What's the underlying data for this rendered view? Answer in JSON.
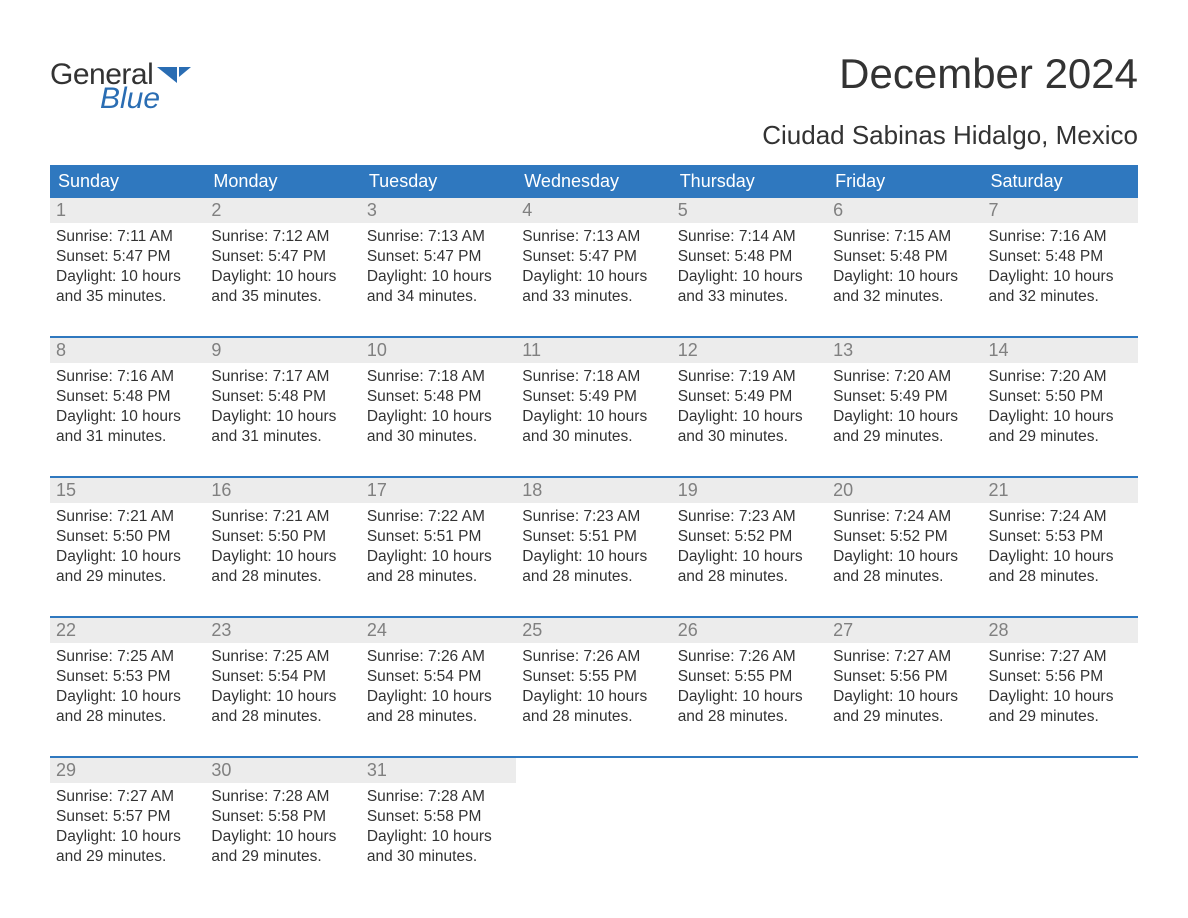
{
  "logo": {
    "text1": "General",
    "text2": "Blue",
    "shape_color": "#2a6db3"
  },
  "title": "December 2024",
  "location": "Ciudad Sabinas Hidalgo, Mexico",
  "colors": {
    "header_bg": "#2f78bf",
    "header_text": "#ffffff",
    "daynum_bg": "#ececec",
    "daynum_text": "#808080",
    "body_text": "#333333",
    "week_border": "#2f78bf",
    "page_bg": "#ffffff"
  },
  "dow": [
    "Sunday",
    "Monday",
    "Tuesday",
    "Wednesday",
    "Thursday",
    "Friday",
    "Saturday"
  ],
  "labels": {
    "sunrise": "Sunrise:",
    "sunset": "Sunset:",
    "daylight": "Daylight:"
  },
  "weeks": [
    [
      {
        "n": "1",
        "sr": "7:11 AM",
        "ss": "5:47 PM",
        "dl": "10 hours and 35 minutes."
      },
      {
        "n": "2",
        "sr": "7:12 AM",
        "ss": "5:47 PM",
        "dl": "10 hours and 35 minutes."
      },
      {
        "n": "3",
        "sr": "7:13 AM",
        "ss": "5:47 PM",
        "dl": "10 hours and 34 minutes."
      },
      {
        "n": "4",
        "sr": "7:13 AM",
        "ss": "5:47 PM",
        "dl": "10 hours and 33 minutes."
      },
      {
        "n": "5",
        "sr": "7:14 AM",
        "ss": "5:48 PM",
        "dl": "10 hours and 33 minutes."
      },
      {
        "n": "6",
        "sr": "7:15 AM",
        "ss": "5:48 PM",
        "dl": "10 hours and 32 minutes."
      },
      {
        "n": "7",
        "sr": "7:16 AM",
        "ss": "5:48 PM",
        "dl": "10 hours and 32 minutes."
      }
    ],
    [
      {
        "n": "8",
        "sr": "7:16 AM",
        "ss": "5:48 PM",
        "dl": "10 hours and 31 minutes."
      },
      {
        "n": "9",
        "sr": "7:17 AM",
        "ss": "5:48 PM",
        "dl": "10 hours and 31 minutes."
      },
      {
        "n": "10",
        "sr": "7:18 AM",
        "ss": "5:48 PM",
        "dl": "10 hours and 30 minutes."
      },
      {
        "n": "11",
        "sr": "7:18 AM",
        "ss": "5:49 PM",
        "dl": "10 hours and 30 minutes."
      },
      {
        "n": "12",
        "sr": "7:19 AM",
        "ss": "5:49 PM",
        "dl": "10 hours and 30 minutes."
      },
      {
        "n": "13",
        "sr": "7:20 AM",
        "ss": "5:49 PM",
        "dl": "10 hours and 29 minutes."
      },
      {
        "n": "14",
        "sr": "7:20 AM",
        "ss": "5:50 PM",
        "dl": "10 hours and 29 minutes."
      }
    ],
    [
      {
        "n": "15",
        "sr": "7:21 AM",
        "ss": "5:50 PM",
        "dl": "10 hours and 29 minutes."
      },
      {
        "n": "16",
        "sr": "7:21 AM",
        "ss": "5:50 PM",
        "dl": "10 hours and 28 minutes."
      },
      {
        "n": "17",
        "sr": "7:22 AM",
        "ss": "5:51 PM",
        "dl": "10 hours and 28 minutes."
      },
      {
        "n": "18",
        "sr": "7:23 AM",
        "ss": "5:51 PM",
        "dl": "10 hours and 28 minutes."
      },
      {
        "n": "19",
        "sr": "7:23 AM",
        "ss": "5:52 PM",
        "dl": "10 hours and 28 minutes."
      },
      {
        "n": "20",
        "sr": "7:24 AM",
        "ss": "5:52 PM",
        "dl": "10 hours and 28 minutes."
      },
      {
        "n": "21",
        "sr": "7:24 AM",
        "ss": "5:53 PM",
        "dl": "10 hours and 28 minutes."
      }
    ],
    [
      {
        "n": "22",
        "sr": "7:25 AM",
        "ss": "5:53 PM",
        "dl": "10 hours and 28 minutes."
      },
      {
        "n": "23",
        "sr": "7:25 AM",
        "ss": "5:54 PM",
        "dl": "10 hours and 28 minutes."
      },
      {
        "n": "24",
        "sr": "7:26 AM",
        "ss": "5:54 PM",
        "dl": "10 hours and 28 minutes."
      },
      {
        "n": "25",
        "sr": "7:26 AM",
        "ss": "5:55 PM",
        "dl": "10 hours and 28 minutes."
      },
      {
        "n": "26",
        "sr": "7:26 AM",
        "ss": "5:55 PM",
        "dl": "10 hours and 28 minutes."
      },
      {
        "n": "27",
        "sr": "7:27 AM",
        "ss": "5:56 PM",
        "dl": "10 hours and 29 minutes."
      },
      {
        "n": "28",
        "sr": "7:27 AM",
        "ss": "5:56 PM",
        "dl": "10 hours and 29 minutes."
      }
    ],
    [
      {
        "n": "29",
        "sr": "7:27 AM",
        "ss": "5:57 PM",
        "dl": "10 hours and 29 minutes."
      },
      {
        "n": "30",
        "sr": "7:28 AM",
        "ss": "5:58 PM",
        "dl": "10 hours and 29 minutes."
      },
      {
        "n": "31",
        "sr": "7:28 AM",
        "ss": "5:58 PM",
        "dl": "10 hours and 30 minutes."
      },
      null,
      null,
      null,
      null
    ]
  ]
}
